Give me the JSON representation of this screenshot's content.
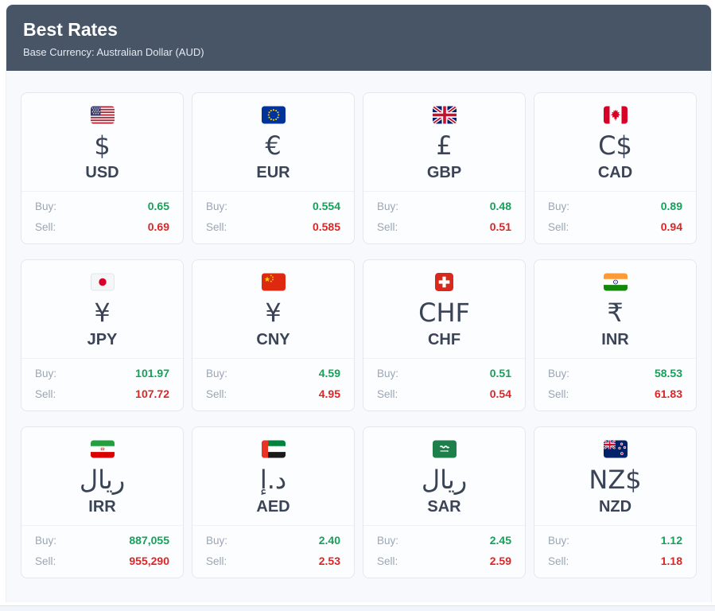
{
  "header": {
    "title": "Best Rates",
    "subtitle": "Base Currency: Australian Dollar (AUD)"
  },
  "labels": {
    "buy": "Buy:",
    "sell": "Sell:"
  },
  "colors": {
    "header_bg": "#475566",
    "buy": "#16a15a",
    "sell": "#dc2626"
  },
  "cards": [
    {
      "code": "USD",
      "symbol": "$",
      "flag": "us-flag",
      "buy": "0.65",
      "sell": "0.69"
    },
    {
      "code": "EUR",
      "symbol": "€",
      "flag": "eu-flag",
      "buy": "0.554",
      "sell": "0.585"
    },
    {
      "code": "GBP",
      "symbol": "£",
      "flag": "gb-flag",
      "buy": "0.48",
      "sell": "0.51"
    },
    {
      "code": "CAD",
      "symbol": "C$",
      "flag": "ca-flag",
      "buy": "0.89",
      "sell": "0.94"
    },
    {
      "code": "JPY",
      "symbol": "¥",
      "flag": "jp-flag",
      "buy": "101.97",
      "sell": "107.72"
    },
    {
      "code": "CNY",
      "symbol": "¥",
      "flag": "cn-flag",
      "buy": "4.59",
      "sell": "4.95"
    },
    {
      "code": "CHF",
      "symbol": "CHF",
      "flag": "ch-flag",
      "buy": "0.51",
      "sell": "0.54"
    },
    {
      "code": "INR",
      "symbol": "₹",
      "flag": "in-flag",
      "buy": "58.53",
      "sell": "61.83"
    },
    {
      "code": "IRR",
      "symbol": "ریال",
      "flag": "ir-flag",
      "buy": "887,055",
      "sell": "955,290"
    },
    {
      "code": "AED",
      "symbol": "د.إ",
      "flag": "ae-flag",
      "buy": "2.40",
      "sell": "2.53"
    },
    {
      "code": "SAR",
      "symbol": "ريال",
      "flag": "sa-flag",
      "buy": "2.45",
      "sell": "2.59"
    },
    {
      "code": "NZD",
      "symbol": "NZ$",
      "flag": "nz-flag",
      "buy": "1.12",
      "sell": "1.18"
    }
  ]
}
